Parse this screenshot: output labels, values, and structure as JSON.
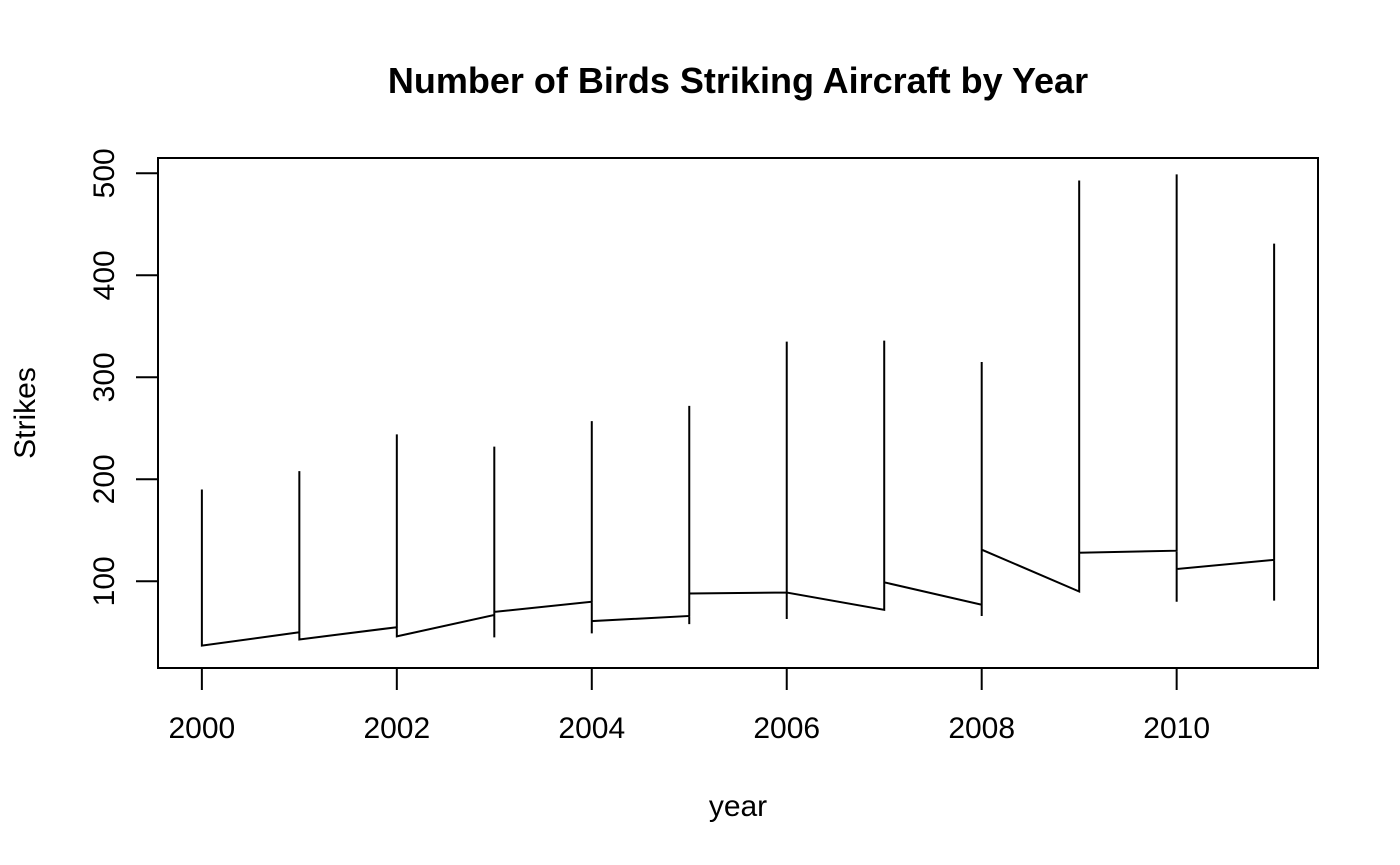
{
  "chart_data": {
    "type": "line",
    "title": "Number of Birds Striking Aircraft by Year",
    "xlabel": "year",
    "ylabel": "Strikes",
    "xlim": [
      1999.55,
      2011.45
    ],
    "ylim": [
      15,
      515
    ],
    "x_ticks": [
      2000,
      2002,
      2004,
      2006,
      2008,
      2010
    ],
    "y_ticks": [
      100,
      200,
      300,
      400,
      500
    ],
    "grid": false,
    "legend": "none",
    "line_color": "#000000",
    "series": [
      {
        "values": [
          [
            2000,
            190
          ],
          [
            2000,
            37
          ],
          [
            2001,
            50
          ],
          [
            2001,
            208
          ],
          [
            2001,
            43
          ],
          [
            2002,
            55
          ],
          [
            2002,
            244
          ],
          [
            2002,
            46
          ],
          [
            2003,
            67
          ],
          [
            2003,
            232
          ],
          [
            2003,
            45
          ],
          [
            2003,
            70
          ],
          [
            2004,
            80
          ],
          [
            2004,
            257
          ],
          [
            2004,
            49
          ],
          [
            2004,
            61
          ],
          [
            2005,
            66
          ],
          [
            2005,
            272
          ],
          [
            2005,
            58
          ],
          [
            2005,
            88
          ],
          [
            2006,
            89
          ],
          [
            2006,
            335
          ],
          [
            2006,
            63
          ],
          [
            2006,
            89
          ],
          [
            2007,
            72
          ],
          [
            2007,
            336
          ],
          [
            2007,
            99
          ],
          [
            2008,
            77
          ],
          [
            2008,
            315
          ],
          [
            2008,
            66
          ],
          [
            2008,
            131
          ],
          [
            2009,
            90
          ],
          [
            2009,
            493
          ],
          [
            2009,
            128
          ],
          [
            2010,
            130
          ],
          [
            2010,
            499
          ],
          [
            2010,
            80
          ],
          [
            2010,
            112
          ],
          [
            2011,
            121
          ],
          [
            2011,
            431
          ],
          [
            2011,
            81
          ]
        ]
      }
    ]
  }
}
